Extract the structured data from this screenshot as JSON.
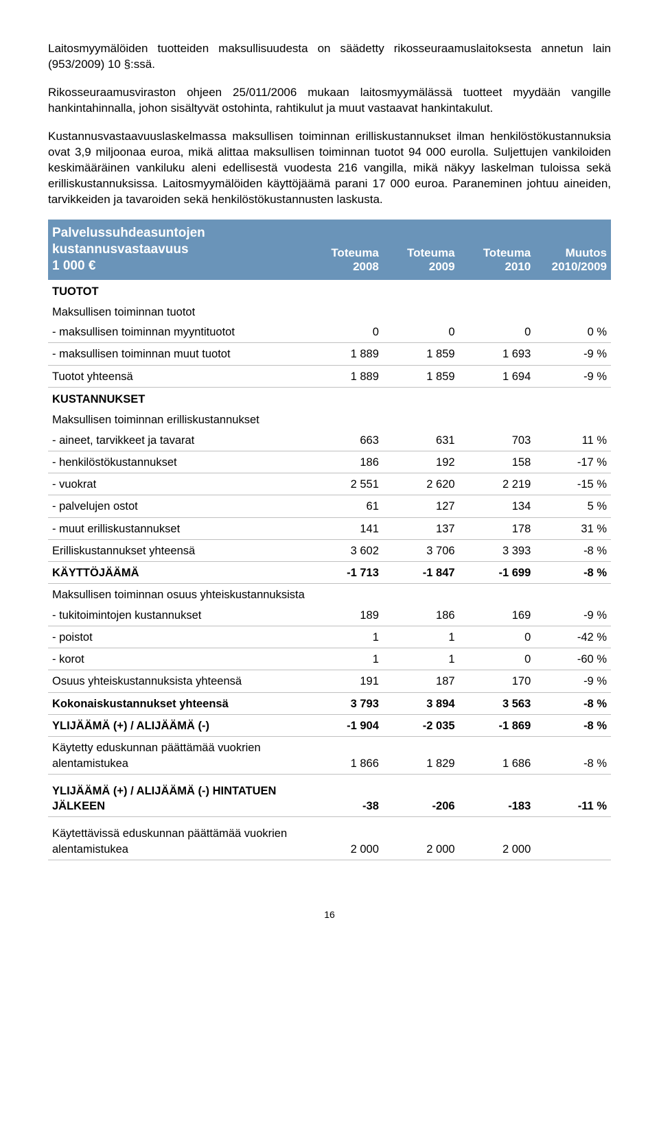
{
  "paragraphs": {
    "p1": "Laitosmyymälöiden tuotteiden maksullisuudesta on säädetty rikosseuraamuslaitoksesta annetun lain (953/2009) 10 §:ssä.",
    "p2": "Rikosseuraamusviraston ohjeen 25/011/2006 mukaan laitosmyymälässä tuotteet myydään vangille hankintahinnalla, johon sisältyvät ostohinta, rahtikulut ja muut vastaavat hankintakulut.",
    "p3": "Kustannusvastaavuuslaskelmassa maksullisen toiminnan erilliskustannukset ilman henkilöstökustannuksia ovat 3,9 miljoonaa euroa, mikä alittaa maksullisen toiminnan tuotot 94 000 eurolla. Suljettujen vankiloiden keskimääräinen vankiluku aleni edellisestä vuodesta 216 vangilla, mikä näkyy laskelman tuloissa sekä erilliskustannuksissa. Laitosmyymälöiden käyttöjäämä parani 17 000 euroa. Paraneminen johtuu aineiden, tarvikkeiden ja tavaroiden sekä henkilöstökustannusten laskusta."
  },
  "table": {
    "header": {
      "title_line1": "Palvelussuhdeasuntojen",
      "title_line2": "kustannusvastaavuus",
      "title_line3": "1 000 €",
      "col1_l1": "Toteuma",
      "col1_l2": "2008",
      "col2_l1": "Toteuma",
      "col2_l2": "2009",
      "col3_l1": "Toteuma",
      "col3_l2": "2010",
      "col4_l1": "Muutos",
      "col4_l2": "2010/2009"
    },
    "rows": [
      {
        "type": "section",
        "label": "TUOTOT"
      },
      {
        "type": "section-normal",
        "label": "Maksullisen toiminnan tuotot"
      },
      {
        "type": "data",
        "label": "- maksullisen toiminnan myyntituotot",
        "c1": "0",
        "c2": "0",
        "c3": "0",
        "c4": "0 %"
      },
      {
        "type": "data",
        "label": "- maksullisen toiminnan muut tuotot",
        "c1": "1 889",
        "c2": "1 859",
        "c3": "1 693",
        "c4": "-9 %"
      },
      {
        "type": "data",
        "label": "Tuotot yhteensä",
        "c1": "1 889",
        "c2": "1 859",
        "c3": "1 694",
        "c4": "-9 %"
      },
      {
        "type": "section",
        "label": "KUSTANNUKSET"
      },
      {
        "type": "section-normal",
        "label": "Maksullisen toiminnan erilliskustannukset"
      },
      {
        "type": "data",
        "label": "- aineet, tarvikkeet ja tavarat",
        "c1": "663",
        "c2": "631",
        "c3": "703",
        "c4": "11 %"
      },
      {
        "type": "data",
        "label": "- henkilöstökustannukset",
        "c1": "186",
        "c2": "192",
        "c3": "158",
        "c4": "-17 %"
      },
      {
        "type": "data",
        "label": "- vuokrat",
        "c1": "2 551",
        "c2": "2 620",
        "c3": "2 219",
        "c4": "-15 %"
      },
      {
        "type": "data",
        "label": "- palvelujen ostot",
        "c1": "61",
        "c2": "127",
        "c3": "134",
        "c4": "5 %"
      },
      {
        "type": "data",
        "label": "- muut erilliskustannukset",
        "c1": "141",
        "c2": "137",
        "c3": "178",
        "c4": "31 %"
      },
      {
        "type": "data",
        "label": "Erilliskustannukset yhteensä",
        "c1": "3 602",
        "c2": "3 706",
        "c3": "3 393",
        "c4": "-8 %"
      },
      {
        "type": "data-bold",
        "label": "KÄYTTÖJÄÄMÄ",
        "c1": "-1 713",
        "c2": "-1 847",
        "c3": "-1 699",
        "c4": "-8 %"
      },
      {
        "type": "section-normal",
        "label": "Maksullisen toiminnan osuus yhteiskustannuksista"
      },
      {
        "type": "data",
        "label": "- tukitoimintojen kustannukset",
        "c1": "189",
        "c2": "186",
        "c3": "169",
        "c4": "-9 %"
      },
      {
        "type": "data",
        "label": "- poistot",
        "c1": "1",
        "c2": "1",
        "c3": "0",
        "c4": "-42 %"
      },
      {
        "type": "data",
        "label": "- korot",
        "c1": "1",
        "c2": "1",
        "c3": "0",
        "c4": "-60 %"
      },
      {
        "type": "data",
        "label": "Osuus yhteiskustannuksista yhteensä",
        "c1": "191",
        "c2": "187",
        "c3": "170",
        "c4": "-9 %"
      },
      {
        "type": "data-bold",
        "label": "Kokonaiskustannukset yhteensä",
        "c1": "3 793",
        "c2": "3 894",
        "c3": "3 563",
        "c4": "-8 %"
      },
      {
        "type": "data-bold",
        "label": "YLIJÄÄMÄ (+) / ALIJÄÄMÄ (-)",
        "c1": "-1 904",
        "c2": "-2 035",
        "c3": "-1 869",
        "c4": "-8 %"
      },
      {
        "type": "data",
        "label": "Käytetty eduskunnan päättämää vuokrien alentamistukea",
        "c1": "1 866",
        "c2": "1 829",
        "c3": "1 686",
        "c4": "-8 %"
      },
      {
        "type": "spacer"
      },
      {
        "type": "data-bold",
        "label": "YLIJÄÄMÄ (+) / ALIJÄÄMÄ (-) HINTATUEN JÄLKEEN",
        "c1": "-38",
        "c2": "-206",
        "c3": "-183",
        "c4": "-11 %"
      },
      {
        "type": "spacer"
      },
      {
        "type": "data",
        "label": "Käytettävissä eduskunnan päättämää vuokrien alentamistukea",
        "c1": "2 000",
        "c2": "2 000",
        "c3": "2 000",
        "c4": ""
      }
    ]
  },
  "page_number": "16"
}
